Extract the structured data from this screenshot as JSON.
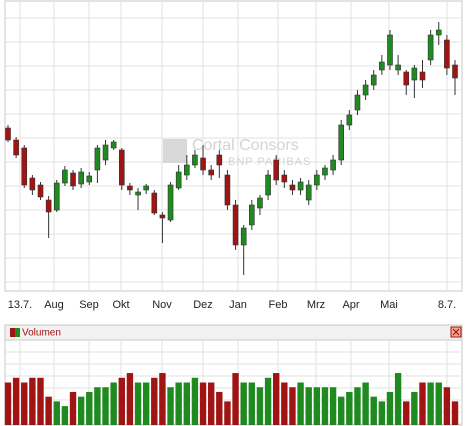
{
  "chart_data": {
    "type": "candlestick",
    "watermark": {
      "title": "Cortal Consors",
      "subtitle": "BNP PARIBAS"
    },
    "x_labels": [
      "13.7.",
      "Aug",
      "Sep",
      "Okt",
      "Nov",
      "Dez",
      "Jan",
      "Feb",
      "Mrz",
      "Apr",
      "Mai",
      "8.7."
    ],
    "up_color": "#1f8a1f",
    "down_color": "#a01414",
    "ylim": [
      0,
      300
    ],
    "open": [
      172,
      160,
      152,
      122,
      115,
      100,
      90,
      117,
      127,
      116,
      118,
      130,
      140,
      152,
      150,
      114,
      105,
      110,
      107,
      85,
      80,
      112,
      125,
      135,
      142,
      130,
      145,
      125,
      95,
      55,
      75,
      92,
      105,
      140,
      125,
      115,
      110,
      100,
      115,
      125,
      130,
      140,
      175,
      190,
      205,
      215,
      230,
      235,
      230,
      228,
      220,
      228,
      240,
      265,
      260,
      235
    ],
    "close": [
      160,
      145,
      115,
      110,
      103,
      88,
      117,
      130,
      114,
      128,
      124,
      152,
      155,
      158,
      115,
      110,
      108,
      114,
      87,
      82,
      115,
      128,
      135,
      145,
      130,
      125,
      135,
      95,
      55,
      72,
      95,
      102,
      125,
      120,
      118,
      110,
      118,
      115,
      125,
      132,
      140,
      175,
      185,
      205,
      215,
      225,
      238,
      265,
      235,
      215,
      232,
      220,
      265,
      270,
      232,
      222
    ],
    "high": [
      175,
      163,
      155,
      125,
      118,
      104,
      120,
      134,
      130,
      132,
      128,
      155,
      160,
      160,
      152,
      117,
      112,
      116,
      110,
      88,
      118,
      135,
      145,
      150,
      155,
      135,
      150,
      130,
      100,
      75,
      100,
      105,
      130,
      145,
      130,
      120,
      122,
      120,
      130,
      135,
      145,
      180,
      190,
      210,
      220,
      230,
      245,
      270,
      245,
      230,
      235,
      240,
      270,
      278,
      265,
      240
    ],
    "low": [
      158,
      142,
      112,
      105,
      100,
      62,
      88,
      114,
      110,
      112,
      115,
      117,
      135,
      150,
      110,
      105,
      90,
      106,
      85,
      57,
      78,
      110,
      120,
      132,
      125,
      120,
      122,
      90,
      50,
      25,
      70,
      85,
      100,
      115,
      112,
      105,
      105,
      95,
      110,
      120,
      125,
      135,
      170,
      185,
      200,
      210,
      225,
      230,
      225,
      205,
      202,
      212,
      235,
      255,
      225,
      205
    ],
    "volume": {
      "label": "Volumen",
      "ylim": [
        0,
        90
      ],
      "values": [
        45,
        50,
        45,
        50,
        50,
        30,
        25,
        20,
        35,
        30,
        35,
        40,
        40,
        45,
        50,
        55,
        45,
        45,
        50,
        55,
        40,
        45,
        45,
        50,
        45,
        45,
        35,
        25,
        55,
        45,
        45,
        40,
        50,
        55,
        45,
        40,
        45,
        40,
        40,
        40,
        40,
        30,
        35,
        40,
        45,
        30,
        25,
        35,
        55,
        25,
        35,
        45,
        45,
        45,
        40,
        25
      ]
    }
  }
}
